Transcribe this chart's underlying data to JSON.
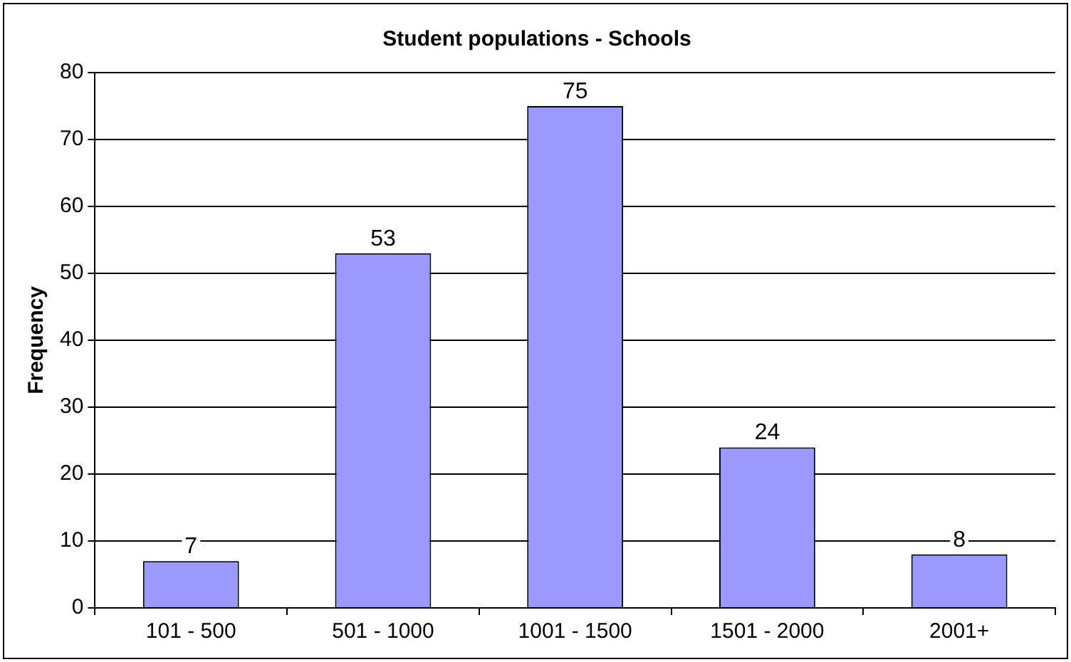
{
  "chart_data": {
    "type": "bar",
    "title": "Student populations - Schools",
    "ylabel": "Frequency",
    "categories": [
      "101 - 500",
      "501 - 1000",
      "1001 - 1500",
      "1501 - 2000",
      "2001+"
    ],
    "values": [
      7,
      53,
      75,
      24,
      8
    ],
    "color": "#9999ff",
    "ylim": [
      0,
      80
    ],
    "yticks": [
      0,
      10,
      20,
      30,
      40,
      50,
      60,
      70,
      80
    ],
    "grid": "y",
    "legend": false,
    "data_labels": true
  }
}
